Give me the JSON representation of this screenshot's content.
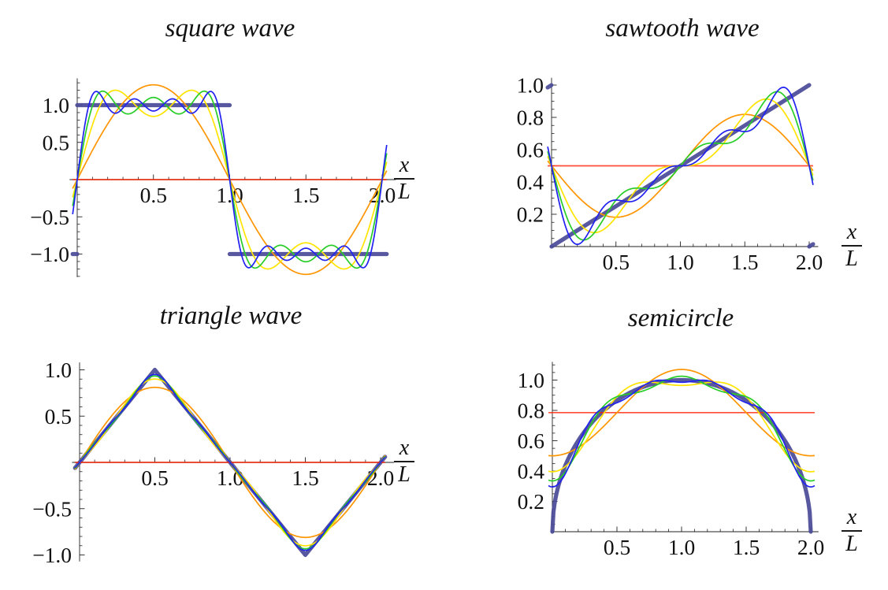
{
  "figure": {
    "background": "#ffffff"
  },
  "chart_data": [
    {
      "type": "line",
      "title": "square wave",
      "xlabel": {
        "numerator": "x",
        "denominator": "L"
      },
      "x_range": [
        0,
        2
      ],
      "ylim": [
        -1.31,
        1.36
      ],
      "xticks": [
        {
          "v": 0.5,
          "label": "0.5"
        },
        {
          "v": 1.0,
          "label": "1.0"
        },
        {
          "v": 1.5,
          "label": "1.5"
        },
        {
          "v": 2.0,
          "label": "2.0"
        }
      ],
      "yticks": [
        {
          "v": 1.0,
          "label": "1.0"
        },
        {
          "v": 0.5,
          "label": "0.5"
        },
        {
          "v": -0.5,
          "label": "−0.5"
        },
        {
          "v": -1.0,
          "label": "−1.0"
        }
      ],
      "minor_step_x": 0.1,
      "minor_step_y": 0.1,
      "fourier": {
        "mean": 0,
        "basis": "sin",
        "terms": [
          {
            "n": 1,
            "c": 1.27324
          },
          {
            "n": 3,
            "c": 0.42441
          },
          {
            "n": 5,
            "c": 0.25465
          },
          {
            "n": 7,
            "c": 0.18189
          }
        ]
      },
      "partial_sums": [
        {
          "terms": 0,
          "color": "#FF2200"
        },
        {
          "terms": 1,
          "color": "#FF9500"
        },
        {
          "terms": 2,
          "color": "#FFE400"
        },
        {
          "terms": 3,
          "color": "#28CD28"
        },
        {
          "terms": 4,
          "color": "#2121F0"
        }
      ],
      "exact": {
        "shape": "square",
        "color": "#4B4B99",
        "values": "1 on (0,1), −1 on (1,2)"
      }
    },
    {
      "type": "line",
      "title": "sawtooth wave",
      "xlabel": {
        "numerator": "x",
        "denominator": "L"
      },
      "x_range": [
        0,
        2
      ],
      "ylim": [
        0,
        1.045
      ],
      "xticks": [
        {
          "v": 0.5,
          "label": "0.5"
        },
        {
          "v": 1.0,
          "label": "1.0"
        },
        {
          "v": 1.5,
          "label": "1.5"
        },
        {
          "v": 2.0,
          "label": "2.0"
        }
      ],
      "yticks": [
        {
          "v": 1.0,
          "label": "1.0"
        },
        {
          "v": 0.8,
          "label": "0.8"
        },
        {
          "v": 0.6,
          "label": "0.6"
        },
        {
          "v": 0.4,
          "label": "0.4"
        },
        {
          "v": 0.2,
          "label": "0.2"
        }
      ],
      "minor_step_x": 0.1,
      "minor_step_y": 0.05,
      "fourier": {
        "mean": 0.5,
        "basis": "sin",
        "terms": [
          {
            "n": 1,
            "c": -0.31831
          },
          {
            "n": 2,
            "c": -0.15915
          },
          {
            "n": 3,
            "c": -0.1061
          },
          {
            "n": 4,
            "c": -0.07958
          }
        ]
      },
      "partial_sums": [
        {
          "terms": 0,
          "color": "#FF2200"
        },
        {
          "terms": 1,
          "color": "#FF9500"
        },
        {
          "terms": 2,
          "color": "#FFE400"
        },
        {
          "terms": 3,
          "color": "#28CD28"
        },
        {
          "terms": 4,
          "color": "#2121F0"
        }
      ],
      "exact": {
        "shape": "sawtooth",
        "color": "#4B4B99",
        "values": "x/2 on [0,2), periodic"
      }
    },
    {
      "type": "line",
      "title": "triangle wave",
      "xlabel": {
        "numerator": "x",
        "denominator": "L"
      },
      "x_range": [
        0,
        2
      ],
      "ylim": [
        -1.07,
        1.08
      ],
      "xticks": [
        {
          "v": 0.5,
          "label": "0.5"
        },
        {
          "v": 1.0,
          "label": "1.0"
        },
        {
          "v": 1.5,
          "label": "1.5"
        },
        {
          "v": 2.0,
          "label": "2.0"
        }
      ],
      "yticks": [
        {
          "v": 1.0,
          "label": "1.0"
        },
        {
          "v": 0.5,
          "label": "0.5"
        },
        {
          "v": -0.5,
          "label": "−0.5"
        },
        {
          "v": -1.0,
          "label": "−1.0"
        }
      ],
      "minor_step_x": 0.1,
      "minor_step_y": 0.1,
      "fourier": {
        "mean": 0,
        "basis": "sin",
        "terms": [
          {
            "n": 1,
            "c": 0.81057
          },
          {
            "n": 3,
            "c": -0.09006
          },
          {
            "n": 5,
            "c": 0.03242
          },
          {
            "n": 7,
            "c": -0.01654
          }
        ]
      },
      "partial_sums": [
        {
          "terms": 0,
          "color": "#FF2200"
        },
        {
          "terms": 1,
          "color": "#FF9500"
        },
        {
          "terms": 2,
          "color": "#FFE400"
        },
        {
          "terms": 3,
          "color": "#28CD28"
        },
        {
          "terms": 4,
          "color": "#2121F0"
        }
      ],
      "exact": {
        "shape": "triangle",
        "color": "#4B4B99",
        "values": "0→1 at x=0.5, −1 at x=1.5, 0 at x=2"
      }
    },
    {
      "type": "line",
      "title": "semicircle",
      "xlabel": {
        "numerator": "x",
        "denominator": "L"
      },
      "x_range": [
        0,
        2
      ],
      "ylim": [
        0,
        1.12
      ],
      "xticks": [
        {
          "v": 0.5,
          "label": "0.5"
        },
        {
          "v": 1.0,
          "label": "1.0"
        },
        {
          "v": 1.5,
          "label": "1.5"
        },
        {
          "v": 2.0,
          "label": "2.0"
        }
      ],
      "yticks": [
        {
          "v": 1.0,
          "label": "1.0"
        },
        {
          "v": 0.8,
          "label": "0.8"
        },
        {
          "v": 0.6,
          "label": "0.6"
        },
        {
          "v": 0.4,
          "label": "0.4"
        },
        {
          "v": 0.2,
          "label": "0.2"
        }
      ],
      "minor_step_x": 0.1,
      "minor_step_y": 0.05,
      "fourier": {
        "mean": 0.7854,
        "basis": "cos",
        "terms": [
          {
            "n": 1,
            "c": -0.28462
          },
          {
            "n": 2,
            "c": -0.10516
          },
          {
            "n": 3,
            "c": -0.06043
          },
          {
            "n": 4,
            "c": -0.03979
          }
        ]
      },
      "partial_sums": [
        {
          "terms": 0,
          "color": "#FF2200"
        },
        {
          "terms": 1,
          "color": "#FF9500"
        },
        {
          "terms": 2,
          "color": "#FFE400"
        },
        {
          "terms": 3,
          "color": "#28CD28"
        },
        {
          "terms": 4,
          "color": "#2121F0"
        }
      ],
      "exact": {
        "shape": "semicircle",
        "color": "#4B4B99",
        "values": "√(1−(x−1)²)"
      }
    }
  ]
}
